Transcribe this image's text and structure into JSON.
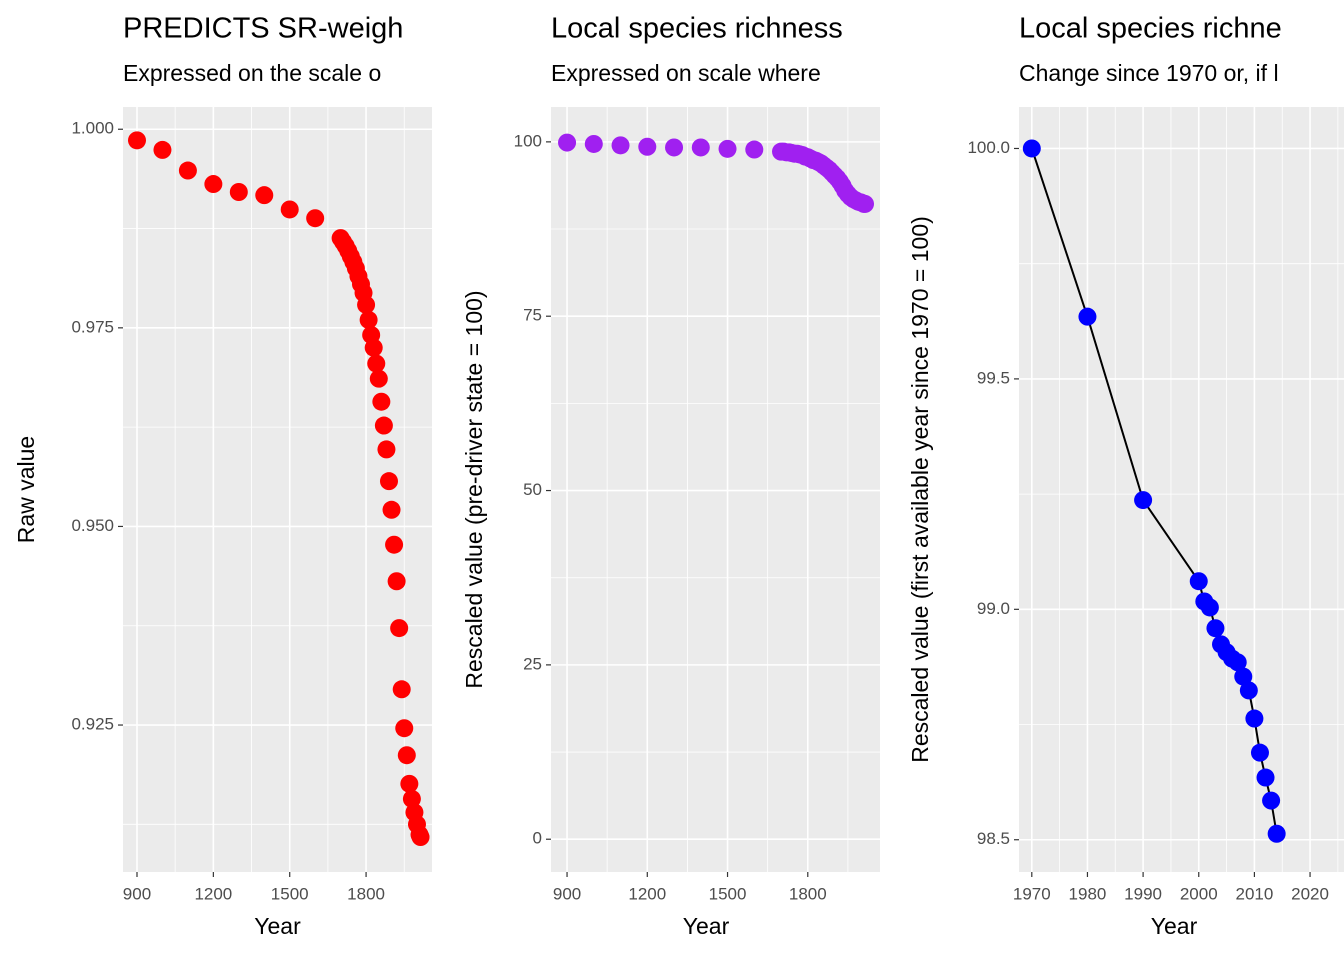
{
  "chart_data": [
    {
      "type": "scatter",
      "title": "PREDICTS SR-weigh",
      "subtitle": "Expressed on the scale o",
      "xlabel": "Year",
      "ylabel": "Raw value",
      "color": "#ff0000",
      "x": [
        900,
        1000,
        1100,
        1200,
        1300,
        1400,
        1500,
        1600,
        1700,
        1710,
        1720,
        1730,
        1740,
        1750,
        1760,
        1770,
        1780,
        1790,
        1800,
        1810,
        1820,
        1830,
        1840,
        1850,
        1860,
        1870,
        1880,
        1890,
        1900,
        1910,
        1920,
        1930,
        1940,
        1950,
        1960,
        1970,
        1980,
        1990,
        2000,
        2010,
        2014
      ],
      "values": [
        0.9986,
        0.9974,
        0.9948,
        0.9931,
        0.9921,
        0.9917,
        0.9899,
        0.9888,
        0.9863,
        0.9858,
        0.9853,
        0.9847,
        0.984,
        0.9833,
        0.9825,
        0.9815,
        0.9805,
        0.9794,
        0.9779,
        0.976,
        0.9741,
        0.9725,
        0.9705,
        0.9686,
        0.9657,
        0.9627,
        0.9597,
        0.9557,
        0.9521,
        0.9477,
        0.9431,
        0.9372,
        0.9295,
        0.9246,
        0.9212,
        0.9176,
        0.9157,
        0.914,
        0.9125,
        0.9112,
        0.9109
      ],
      "xlim": [
        845,
        2059
      ],
      "xticks": [
        900,
        1200,
        1500,
        1800
      ],
      "ylim": [
        0.9065,
        1.0028
      ],
      "yticks": [
        {
          "value": 1,
          "label": "1.000"
        },
        0.975,
        {
          "value": 0.95,
          "label": "0.950"
        },
        0.925
      ],
      "grid": true
    },
    {
      "type": "scatter",
      "title": "Local species richness",
      "subtitle": "Expressed on scale where",
      "xlabel": "Year",
      "ylabel": "Rescaled value (pre-driver state = 100)",
      "color": "#a020f0",
      "x": [
        900,
        1000,
        1100,
        1200,
        1300,
        1400,
        1500,
        1600,
        1700,
        1710,
        1720,
        1730,
        1740,
        1750,
        1760,
        1770,
        1780,
        1790,
        1800,
        1810,
        1820,
        1830,
        1840,
        1850,
        1860,
        1870,
        1880,
        1890,
        1900,
        1910,
        1920,
        1930,
        1940,
        1950,
        1960,
        1970,
        1980,
        1990,
        2000,
        2010,
        2014
      ],
      "values": [
        99.9,
        99.7,
        99.5,
        99.3,
        99.2,
        99.2,
        99.0,
        98.9,
        98.6,
        98.6,
        98.5,
        98.5,
        98.4,
        98.3,
        98.3,
        98.2,
        98.1,
        97.9,
        97.8,
        97.6,
        97.4,
        97.3,
        97.1,
        96.9,
        96.6,
        96.3,
        96.0,
        95.6,
        95.2,
        94.8,
        94.3,
        93.7,
        93.0,
        92.5,
        92.1,
        91.8,
        91.6,
        91.4,
        91.3,
        91.1,
        91.1
      ],
      "trend": {
        "x": [
          1965,
          1990,
          2014
        ],
        "values": [
          92.4,
          92.0,
          91.4
        ],
        "color": "#000000"
      },
      "xlim": [
        840,
        2070
      ],
      "xticks": [
        900,
        1200,
        1500,
        1800
      ],
      "ylim": [
        -4.7,
        105
      ],
      "yticks": [
        0,
        25,
        50,
        75,
        100
      ],
      "grid": true
    },
    {
      "type": "scatter",
      "title": "Local species richne",
      "subtitle": "Change since 1970 or, if l",
      "xlabel": "Year",
      "ylabel": "Rescaled value (first available year since 1970 = 100)",
      "color": "#0000ff",
      "line_color": "#000000",
      "x": [
        1970,
        1980,
        1990,
        2000,
        2001,
        2002,
        2003,
        2004,
        2005,
        2006,
        2007,
        2008,
        2009,
        2010,
        2011,
        2012,
        2013,
        2014
      ],
      "values": [
        100.0,
        99.635,
        99.237,
        99.061,
        99.017,
        99.004,
        98.959,
        98.924,
        98.907,
        98.893,
        98.885,
        98.854,
        98.824,
        98.763,
        98.689,
        98.635,
        98.585,
        98.513
      ],
      "xlim": [
        1967.7,
        2026.1
      ],
      "xticks": [
        1970,
        1980,
        1990,
        2000,
        2010,
        2020
      ],
      "ylim": [
        98.43,
        100.09
      ],
      "yticks": [
        98.5,
        {
          "value": 99,
          "label": "99.0"
        },
        99.5,
        {
          "value": 100,
          "label": "100.0"
        }
      ],
      "grid": true
    }
  ]
}
